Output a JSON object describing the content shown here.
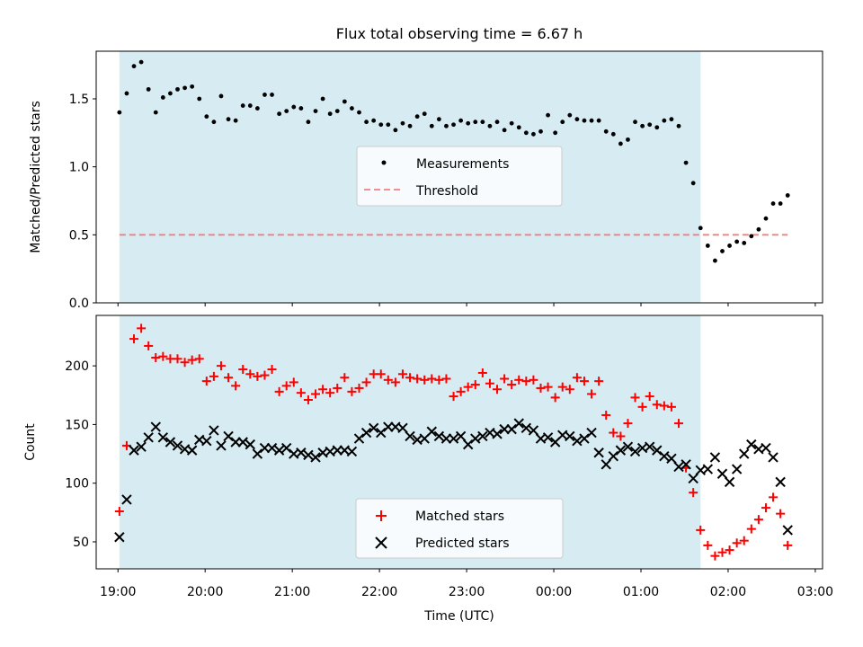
{
  "chart_data": [
    {
      "type": "scatter",
      "title": "Flux total observing time = 6.67 h",
      "xlabel": "",
      "ylabel": "Matched/Predicted stars",
      "ylim": [
        0.0,
        1.85
      ],
      "yticks": [
        "0.0",
        "0.5",
        "1.0",
        "1.5"
      ],
      "shaded_span": {
        "from": "19:01",
        "to": "01:41",
        "color": "#add8e6"
      },
      "threshold": {
        "name": "Threshold",
        "value": 0.5,
        "from": "19:01",
        "to": "02:41",
        "color": "#f08080",
        "style": "dashed"
      },
      "legend_position": "center",
      "series": [
        {
          "name": "Measurements",
          "color": "#000000",
          "marker": "dot",
          "x": [
            "19:01",
            "19:06",
            "19:11",
            "19:16",
            "19:21",
            "19:26",
            "19:31",
            "19:36",
            "19:41",
            "19:46",
            "19:51",
            "19:56",
            "20:01",
            "20:06",
            "20:11",
            "20:16",
            "20:21",
            "20:26",
            "20:31",
            "20:36",
            "20:41",
            "20:46",
            "20:51",
            "20:56",
            "21:01",
            "21:06",
            "21:11",
            "21:16",
            "21:21",
            "21:26",
            "21:31",
            "21:36",
            "21:41",
            "21:46",
            "21:51",
            "21:56",
            "22:01",
            "22:06",
            "22:11",
            "22:16",
            "22:21",
            "22:26",
            "22:31",
            "22:36",
            "22:41",
            "22:46",
            "22:51",
            "22:56",
            "23:01",
            "23:06",
            "23:11",
            "23:16",
            "23:21",
            "23:26",
            "23:31",
            "23:36",
            "23:41",
            "23:46",
            "23:51",
            "23:56",
            "00:01",
            "00:06",
            "00:11",
            "00:16",
            "00:21",
            "00:26",
            "00:31",
            "00:36",
            "00:41",
            "00:46",
            "00:51",
            "00:56",
            "01:01",
            "01:06",
            "01:11",
            "01:16",
            "01:21",
            "01:26",
            "01:31",
            "01:36",
            "01:41",
            "01:46",
            "01:51",
            "01:56",
            "02:01",
            "02:06",
            "02:11",
            "02:16",
            "02:21",
            "02:26",
            "02:31",
            "02:36",
            "02:41"
          ],
          "y": [
            1.4,
            1.54,
            1.74,
            1.77,
            1.57,
            1.4,
            1.51,
            1.54,
            1.57,
            1.58,
            1.59,
            1.5,
            1.37,
            1.33,
            1.52,
            1.35,
            1.34,
            1.45,
            1.45,
            1.43,
            1.53,
            1.53,
            1.39,
            1.41,
            1.44,
            1.43,
            1.33,
            1.41,
            1.5,
            1.39,
            1.41,
            1.48,
            1.43,
            1.4,
            1.33,
            1.34,
            1.31,
            1.31,
            1.27,
            1.32,
            1.3,
            1.37,
            1.39,
            1.3,
            1.35,
            1.3,
            1.31,
            1.34,
            1.32,
            1.33,
            1.33,
            1.3,
            1.33,
            1.27,
            1.32,
            1.29,
            1.25,
            1.24,
            1.26,
            1.38,
            1.25,
            1.33,
            1.38,
            1.35,
            1.34,
            1.34,
            1.34,
            1.26,
            1.24,
            1.17,
            1.2,
            1.33,
            1.3,
            1.31,
            1.29,
            1.34,
            1.35,
            1.3,
            1.03,
            0.88,
            0.55,
            0.42,
            0.31,
            0.38,
            0.42,
            0.45,
            0.44,
            0.49,
            0.54,
            0.62,
            0.73,
            0.73,
            0.79
          ]
        }
      ]
    },
    {
      "type": "scatter",
      "title": "",
      "xlabel": "Time (UTC)",
      "ylabel": "Count",
      "ylim": [
        27,
        243
      ],
      "xlim": [
        "18:45",
        "03:05"
      ],
      "yticks": [
        "50",
        "100",
        "150",
        "200"
      ],
      "xticks": [
        "19:00",
        "20:00",
        "21:00",
        "22:00",
        "23:00",
        "00:00",
        "01:00",
        "02:00",
        "03:00"
      ],
      "shaded_span": {
        "from": "19:01",
        "to": "01:41",
        "color": "#add8e6"
      },
      "legend_position": "bottom-center",
      "series": [
        {
          "name": "Matched stars",
          "color": "#ff0000",
          "marker": "plus",
          "x": [
            "19:01",
            "19:06",
            "19:11",
            "19:16",
            "19:21",
            "19:26",
            "19:31",
            "19:36",
            "19:41",
            "19:46",
            "19:51",
            "19:56",
            "20:01",
            "20:06",
            "20:11",
            "20:16",
            "20:21",
            "20:26",
            "20:31",
            "20:36",
            "20:41",
            "20:46",
            "20:51",
            "20:56",
            "21:01",
            "21:06",
            "21:11",
            "21:16",
            "21:21",
            "21:26",
            "21:31",
            "21:36",
            "21:41",
            "21:46",
            "21:51",
            "21:56",
            "22:01",
            "22:06",
            "22:11",
            "22:16",
            "22:21",
            "22:26",
            "22:31",
            "22:36",
            "22:41",
            "22:46",
            "22:51",
            "22:56",
            "23:01",
            "23:06",
            "23:11",
            "23:16",
            "23:21",
            "23:26",
            "23:31",
            "23:36",
            "23:41",
            "23:46",
            "23:51",
            "23:56",
            "00:01",
            "00:06",
            "00:11",
            "00:16",
            "00:21",
            "00:26",
            "00:31",
            "00:36",
            "00:41",
            "00:46",
            "00:51",
            "00:56",
            "01:01",
            "01:06",
            "01:11",
            "01:16",
            "01:21",
            "01:26",
            "01:31",
            "01:36",
            "01:41",
            "01:46",
            "01:51",
            "01:56",
            "02:01",
            "02:06",
            "02:11",
            "02:16",
            "02:21",
            "02:26",
            "02:31",
            "02:36",
            "02:41"
          ],
          "y": [
            76,
            132,
            223,
            232,
            217,
            207,
            208,
            206,
            206,
            203,
            205,
            206,
            187,
            191,
            200,
            190,
            183,
            197,
            193,
            191,
            192,
            197,
            178,
            183,
            186,
            177,
            171,
            176,
            180,
            177,
            181,
            190,
            178,
            181,
            186,
            193,
            193,
            188,
            186,
            193,
            190,
            189,
            188,
            189,
            188,
            189,
            174,
            178,
            182,
            184,
            194,
            185,
            180,
            189,
            184,
            188,
            187,
            188,
            181,
            182,
            173,
            182,
            180,
            190,
            187,
            176,
            187,
            158,
            143,
            140,
            151,
            173,
            165,
            174,
            167,
            166,
            165,
            151,
            113,
            92,
            60,
            47,
            38,
            41,
            43,
            49,
            51,
            61,
            69,
            79,
            88,
            74,
            47
          ]
        },
        {
          "name": "Predicted stars",
          "color": "#000000",
          "marker": "x",
          "x": [
            "19:01",
            "19:06",
            "19:11",
            "19:16",
            "19:21",
            "19:26",
            "19:31",
            "19:36",
            "19:41",
            "19:46",
            "19:51",
            "19:56",
            "20:01",
            "20:06",
            "20:11",
            "20:16",
            "20:21",
            "20:26",
            "20:31",
            "20:36",
            "20:41",
            "20:46",
            "20:51",
            "20:56",
            "21:01",
            "21:06",
            "21:11",
            "21:16",
            "21:21",
            "21:26",
            "21:31",
            "21:36",
            "21:41",
            "21:46",
            "21:51",
            "21:56",
            "22:01",
            "22:06",
            "22:11",
            "22:16",
            "22:21",
            "22:26",
            "22:31",
            "22:36",
            "22:41",
            "22:46",
            "22:51",
            "22:56",
            "23:01",
            "23:06",
            "23:11",
            "23:16",
            "23:21",
            "23:26",
            "23:31",
            "23:36",
            "23:41",
            "23:46",
            "23:51",
            "23:56",
            "00:01",
            "00:06",
            "00:11",
            "00:16",
            "00:21",
            "00:26",
            "00:31",
            "00:36",
            "00:41",
            "00:46",
            "00:51",
            "00:56",
            "01:01",
            "01:06",
            "01:11",
            "01:16",
            "01:21",
            "01:26",
            "01:31",
            "01:36",
            "01:41",
            "01:46",
            "01:51",
            "01:56",
            "02:01",
            "02:06",
            "02:11",
            "02:16",
            "02:21",
            "02:26",
            "02:31",
            "02:36",
            "02:41"
          ],
          "y": [
            54,
            86,
            128,
            131,
            139,
            148,
            139,
            135,
            132,
            129,
            128,
            137,
            136,
            145,
            132,
            140,
            135,
            135,
            133,
            125,
            130,
            130,
            128,
            130,
            125,
            126,
            124,
            122,
            126,
            127,
            128,
            128,
            127,
            138,
            143,
            147,
            143,
            148,
            148,
            147,
            140,
            137,
            138,
            144,
            140,
            138,
            138,
            140,
            133,
            138,
            140,
            143,
            142,
            146,
            146,
            151,
            147,
            145,
            138,
            139,
            135,
            141,
            140,
            136,
            138,
            143,
            126,
            116,
            123,
            128,
            131,
            127,
            130,
            131,
            128,
            123,
            121,
            114,
            116,
            104,
            111,
            112,
            122,
            108,
            101,
            112,
            125,
            133,
            129,
            130,
            122,
            101,
            60
          ]
        }
      ]
    }
  ]
}
